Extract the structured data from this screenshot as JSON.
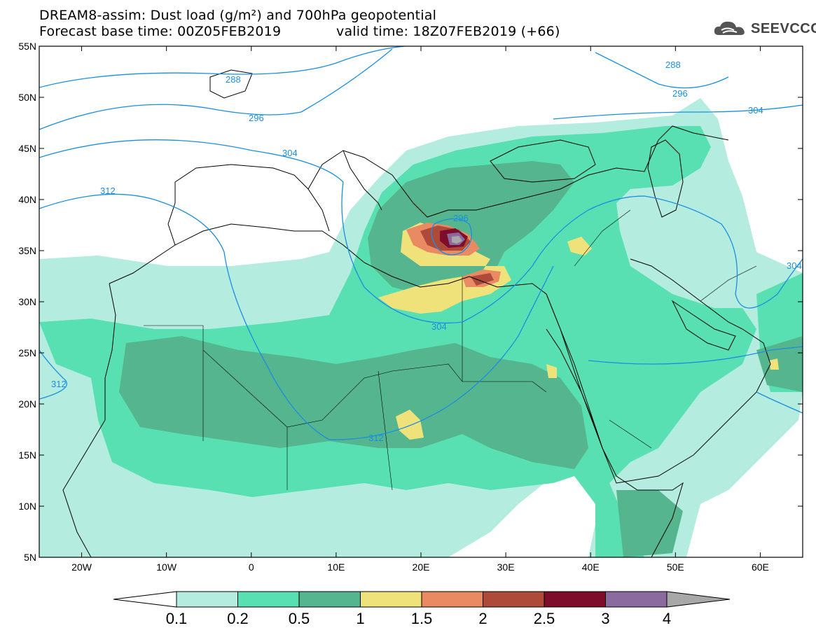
{
  "header": {
    "line1": "DREAM8-assim: Dust load (g/m²) and 700hPa geopotential",
    "line2a": "Forecast base time: 00Z05FEB2019",
    "line2b": "valid time: 18Z07FEB2019 (+66)"
  },
  "logo": {
    "text": "SEEVCCC",
    "icon": "cloud-logo-icon"
  },
  "map": {
    "lon_range": [
      -25,
      65
    ],
    "lat_range": [
      5,
      55
    ],
    "lon_ticks": [
      {
        "v": -20,
        "label": "20W"
      },
      {
        "v": -10,
        "label": "10W"
      },
      {
        "v": 0,
        "label": "0"
      },
      {
        "v": 10,
        "label": "10E"
      },
      {
        "v": 20,
        "label": "20E"
      },
      {
        "v": 30,
        "label": "30E"
      },
      {
        "v": 40,
        "label": "40E"
      },
      {
        "v": 50,
        "label": "50E"
      },
      {
        "v": 60,
        "label": "60E"
      }
    ],
    "lat_ticks": [
      {
        "v": 55,
        "label": "55N"
      },
      {
        "v": 50,
        "label": "50N"
      },
      {
        "v": 45,
        "label": "45N"
      },
      {
        "v": 40,
        "label": "40N"
      },
      {
        "v": 35,
        "label": "35N"
      },
      {
        "v": 30,
        "label": "30N"
      },
      {
        "v": 25,
        "label": "25N"
      },
      {
        "v": 20,
        "label": "20N"
      },
      {
        "v": 15,
        "label": "15N"
      },
      {
        "v": 10,
        "label": "10N"
      },
      {
        "v": 5,
        "label": "5N"
      }
    ],
    "contour_labels": [
      "288",
      "296",
      "304",
      "312",
      "288",
      "296",
      "304",
      "312",
      "304",
      "312",
      "304",
      "296"
    ]
  },
  "colorbar": {
    "labels": [
      "0.1",
      "0.2",
      "0.5",
      "1",
      "1.5",
      "2",
      "2.5",
      "3",
      "4"
    ],
    "colors": [
      "#ffffff",
      "#b4ecdf",
      "#58e0b2",
      "#55b58e",
      "#f0e27a",
      "#e98a62",
      "#ad4a3a",
      "#7d0d2b",
      "#8b6aa0",
      "#a8a8a8"
    ]
  }
}
